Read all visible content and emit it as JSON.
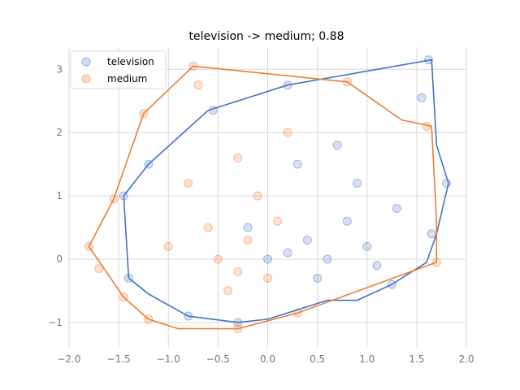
{
  "chart_data": {
    "type": "scatter",
    "title": "television -> medium; 0.88",
    "xlabel": "",
    "ylabel": "",
    "xlim": [
      -2.0,
      2.0
    ],
    "ylim": [
      -1.4,
      3.35
    ],
    "x_ticks": [
      -2.0,
      -1.5,
      -1.0,
      -0.5,
      0.0,
      0.5,
      1.0,
      1.5,
      2.0
    ],
    "x_tick_labels": [
      "−2.0",
      "−1.5",
      "−1.0",
      "−0.5",
      "0.0",
      "0.5",
      "1.0",
      "1.5",
      "2.0"
    ],
    "y_ticks": [
      -1,
      0,
      1,
      2,
      3
    ],
    "y_tick_labels": [
      "−1",
      "0",
      "1",
      "2",
      "3"
    ],
    "grid": true,
    "legend_position": "top-left",
    "series": [
      {
        "name": "television",
        "color": "#4472c4",
        "hull": [
          [
            1.65,
            3.15
          ],
          [
            0.2,
            2.75
          ],
          [
            -0.6,
            2.35
          ],
          [
            -1.2,
            1.5
          ],
          [
            -1.45,
            1.0
          ],
          [
            -1.4,
            -0.3
          ],
          [
            -1.2,
            -0.55
          ],
          [
            -0.8,
            -0.9
          ],
          [
            -0.3,
            -1.0
          ],
          [
            0.0,
            -0.95
          ],
          [
            0.6,
            -0.65
          ],
          [
            0.9,
            -0.65
          ],
          [
            1.25,
            -0.4
          ],
          [
            1.6,
            -0.05
          ],
          [
            1.7,
            0.4
          ],
          [
            1.82,
            1.2
          ],
          [
            1.7,
            1.8
          ]
        ],
        "points": [
          [
            1.62,
            3.15
          ],
          [
            1.55,
            2.55
          ],
          [
            0.2,
            2.75
          ],
          [
            -0.55,
            2.35
          ],
          [
            -1.2,
            1.5
          ],
          [
            -1.45,
            1.0
          ],
          [
            -1.4,
            -0.3
          ],
          [
            -0.8,
            -0.9
          ],
          [
            -0.3,
            -1.0
          ],
          [
            1.25,
            -0.4
          ],
          [
            1.8,
            1.2
          ],
          [
            1.65,
            0.4
          ],
          [
            0.6,
            0.0
          ],
          [
            0.4,
            0.3
          ],
          [
            0.8,
            0.6
          ],
          [
            0.2,
            0.1
          ],
          [
            1.0,
            0.2
          ],
          [
            0.5,
            -0.3
          ],
          [
            0.9,
            1.2
          ],
          [
            1.3,
            0.8
          ],
          [
            0.3,
            1.5
          ],
          [
            0.7,
            1.8
          ],
          [
            -0.2,
            0.5
          ],
          [
            1.1,
            -0.1
          ],
          [
            0.0,
            0.0
          ]
        ]
      },
      {
        "name": "medium",
        "color": "#ed7d31",
        "hull": [
          [
            -0.75,
            3.05
          ],
          [
            0.8,
            2.8
          ],
          [
            1.35,
            2.2
          ],
          [
            1.65,
            2.1
          ],
          [
            1.7,
            0.6
          ],
          [
            1.7,
            -0.05
          ],
          [
            0.3,
            -0.85
          ],
          [
            -0.3,
            -1.1
          ],
          [
            -0.9,
            -1.1
          ],
          [
            -1.2,
            -0.95
          ],
          [
            -1.45,
            -0.6
          ],
          [
            -1.8,
            0.2
          ],
          [
            -1.55,
            0.95
          ],
          [
            -1.25,
            2.3
          ]
        ],
        "points": [
          [
            -0.75,
            3.05
          ],
          [
            -0.7,
            2.75
          ],
          [
            0.8,
            2.8
          ],
          [
            1.6,
            2.1
          ],
          [
            -1.25,
            2.3
          ],
          [
            -1.55,
            0.95
          ],
          [
            -1.8,
            0.2
          ],
          [
            -1.7,
            -0.15
          ],
          [
            -1.45,
            -0.6
          ],
          [
            -1.2,
            -0.95
          ],
          [
            -0.3,
            -1.1
          ],
          [
            0.3,
            -0.85
          ],
          [
            1.7,
            -0.05
          ],
          [
            -0.3,
            -0.2
          ],
          [
            -0.5,
            0.0
          ],
          [
            -0.2,
            0.3
          ],
          [
            -0.4,
            -0.5
          ],
          [
            0.0,
            -0.3
          ],
          [
            -0.6,
            0.5
          ],
          [
            -0.1,
            1.0
          ],
          [
            -0.8,
            1.2
          ],
          [
            0.1,
            0.6
          ],
          [
            -0.3,
            1.6
          ],
          [
            0.2,
            2.0
          ],
          [
            -1.0,
            0.2
          ]
        ]
      }
    ]
  }
}
